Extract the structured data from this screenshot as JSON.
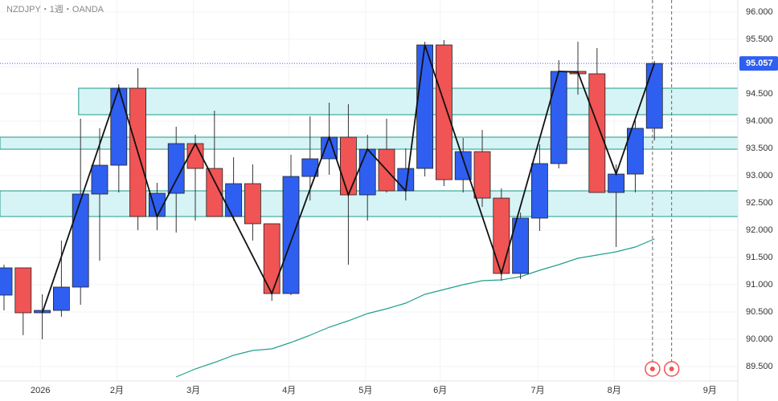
{
  "chart_data": {
    "type": "candlestick",
    "title": "NZDJPY・1週・OANDA",
    "x": [
      0,
      1,
      2,
      3,
      4,
      5,
      6,
      7,
      8,
      9,
      10,
      11,
      12,
      13,
      14,
      15,
      16,
      17,
      18,
      19,
      20,
      21,
      22,
      23,
      24,
      25,
      26,
      27,
      28,
      29,
      30,
      31,
      32,
      33,
      34
    ],
    "open": [
      90.809,
      91.309,
      90.485,
      90.529,
      90.956,
      92.662,
      93.191,
      94.603,
      92.25,
      92.676,
      93.588,
      93.132,
      92.25,
      92.853,
      92.118,
      90.838,
      92.985,
      93.309,
      93.706,
      92.647,
      93.485,
      92.721,
      93.132,
      95.397,
      92.926,
      93.441,
      92.588,
      91.206,
      92.221,
      93.221,
      94.912,
      94.868,
      92.691,
      93.029,
      93.868
    ],
    "high": [
      91.368,
      91.309,
      90.824,
      91.809,
      94.044,
      93.868,
      94.676,
      94.971,
      92.868,
      93.897,
      93.75,
      94.191,
      93.338,
      93.206,
      92.118,
      93.382,
      94.088,
      94.338,
      94.309,
      93.75,
      94.044,
      93.5,
      95.456,
      95.485,
      93.691,
      93.838,
      92.765,
      92.324,
      93.574,
      95.118,
      95.456,
      95.338,
      93.206,
      94.015,
      95.103
    ],
    "low": [
      90.529,
      90.074,
      90.0,
      90.412,
      90.632,
      91.441,
      92.691,
      92.0,
      92.0,
      91.956,
      92.176,
      92.25,
      92.176,
      91.809,
      90.706,
      90.809,
      92.544,
      93.015,
      91.368,
      92.176,
      92.691,
      92.544,
      92.985,
      92.809,
      92.691,
      92.426,
      91.074,
      91.103,
      91.985,
      93.132,
      94.485,
      92.691,
      91.691,
      92.691,
      93.647
    ],
    "close": [
      91.309,
      90.485,
      90.529,
      90.956,
      92.662,
      93.191,
      94.603,
      92.25,
      92.676,
      93.588,
      93.132,
      92.25,
      92.853,
      92.118,
      90.838,
      92.985,
      93.309,
      93.706,
      92.647,
      93.485,
      92.721,
      93.132,
      95.397,
      92.926,
      93.441,
      92.588,
      91.206,
      92.221,
      93.221,
      94.912,
      94.868,
      92.691,
      93.029,
      93.868,
      95.057
    ],
    "up_color": "#2f5ff0",
    "down_color": "#f05454",
    "zigzag": {
      "color": "#111111",
      "x": [
        2,
        6,
        8,
        10,
        14,
        17,
        18,
        19,
        21,
        22,
        26,
        29,
        30,
        32,
        34
      ],
      "values": [
        90.485,
        94.603,
        92.25,
        93.588,
        90.838,
        93.706,
        92.647,
        93.485,
        92.721,
        95.397,
        91.206,
        94.912,
        94.9,
        93.029,
        95.057
      ]
    },
    "moving_average": {
      "color": "#22a08c",
      "x": [
        9,
        10,
        11,
        12,
        13,
        14,
        15,
        16,
        17,
        18,
        19,
        20,
        21,
        22,
        23,
        24,
        25,
        26,
        27,
        28,
        29,
        30,
        31,
        32,
        33,
        34
      ],
      "values": [
        89.309,
        89.456,
        89.574,
        89.706,
        89.794,
        89.824,
        89.941,
        90.074,
        90.221,
        90.338,
        90.471,
        90.559,
        90.662,
        90.824,
        90.912,
        91.0,
        91.074,
        91.088,
        91.147,
        91.265,
        91.368,
        91.485,
        91.544,
        91.603,
        91.691,
        91.838
      ]
    },
    "zones": [
      {
        "from": 94.118,
        "to": 94.603,
        "x0": 3.9
      },
      {
        "from": 93.485,
        "to": 93.706
      },
      {
        "from": 92.25,
        "to": 92.721
      }
    ],
    "zone_color": "#d6f3f5",
    "zone_border": "#1f9a8a",
    "markers_x": [
      33.9,
      34.9
    ],
    "last_price": {
      "value": 95.057,
      "label": "95.057"
    },
    "xlim": [
      -0.21,
      38.36
    ],
    "xticks": [
      {
        "value": 1.9,
        "label": "2026"
      },
      {
        "value": 5.9,
        "label": "2月"
      },
      {
        "value": 9.9,
        "label": "3月"
      },
      {
        "value": 14.9,
        "label": "4月"
      },
      {
        "value": 18.9,
        "label": "5月"
      },
      {
        "value": 22.8,
        "label": "6月"
      },
      {
        "value": 27.9,
        "label": "7月"
      },
      {
        "value": 31.9,
        "label": "8月"
      },
      {
        "value": 36.9,
        "label": "9月"
      }
    ],
    "ylim": [
      89.235,
      96.221
    ],
    "yticks": [
      {
        "value": 89.5,
        "label": "89.500"
      },
      {
        "value": 90,
        "label": "90.000"
      },
      {
        "value": 90.5,
        "label": "90.500"
      },
      {
        "value": 91,
        "label": "91.000"
      },
      {
        "value": 91.5,
        "label": "91.500"
      },
      {
        "value": 92,
        "label": "92.000"
      },
      {
        "value": 92.5,
        "label": "92.500"
      },
      {
        "value": 93,
        "label": "93.000"
      },
      {
        "value": 93.5,
        "label": "93.500"
      },
      {
        "value": 94,
        "label": "94.000"
      },
      {
        "value": 94.5,
        "label": "94.500"
      },
      {
        "value": 95,
        "label": "95.000"
      },
      {
        "value": 95.5,
        "label": "95.500"
      },
      {
        "value": 96,
        "label": "96.000"
      }
    ],
    "grid": true
  }
}
